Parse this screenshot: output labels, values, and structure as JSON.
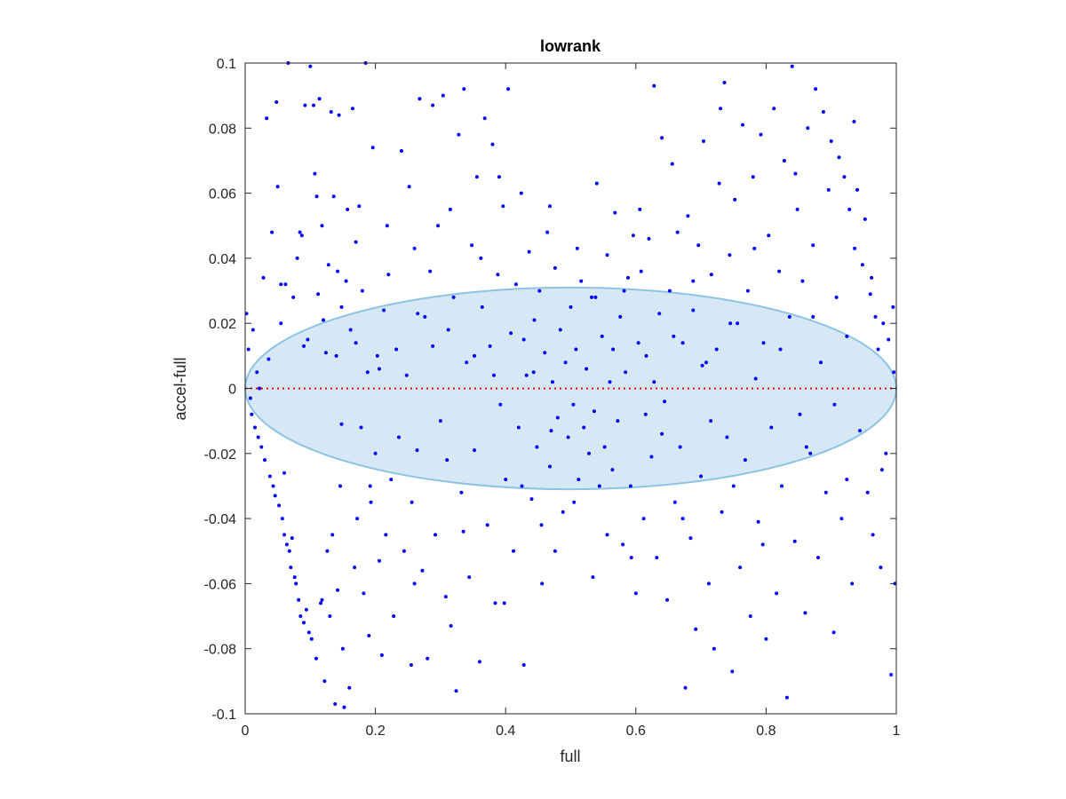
{
  "chart_data": {
    "type": "scatter",
    "title": "lowrank",
    "xlabel": "full",
    "ylabel": "accel-full",
    "xlim": [
      0,
      1
    ],
    "ylim": [
      -0.1,
      0.1
    ],
    "x_ticks": [
      "0",
      "0.2",
      "0.4",
      "0.6",
      "0.8",
      "1"
    ],
    "y_ticks": [
      "0.1",
      "0.08",
      "0.06",
      "0.04",
      "0.02",
      "0",
      "-0.02",
      "-0.04",
      "-0.06",
      "-0.08",
      "-0.1"
    ],
    "grid": false,
    "legend": "none",
    "reference_line": {
      "y": 0,
      "style": "dotted",
      "color": "#ff0000"
    },
    "ellipse": {
      "center": [
        0.5,
        0
      ],
      "x_radius": 0.5,
      "y_radius": 0.031,
      "fill": "#d6e8f5",
      "stroke": "#8ec3e3"
    },
    "marker_color": "#0000ff",
    "points": [
      [
        0.002,
        0.023
      ],
      [
        0.005,
        0.012
      ],
      [
        0.008,
        -0.003
      ],
      [
        0.01,
        -0.008
      ],
      [
        0.012,
        0.018
      ],
      [
        0.015,
        -0.012
      ],
      [
        0.018,
        0.005
      ],
      [
        0.02,
        -0.015
      ],
      [
        0.022,
        0.0
      ],
      [
        0.025,
        -0.018
      ],
      [
        0.028,
        0.034
      ],
      [
        0.03,
        -0.022
      ],
      [
        0.033,
        0.083
      ],
      [
        0.036,
        0.009
      ],
      [
        0.038,
        -0.027
      ],
      [
        0.041,
        0.048
      ],
      [
        0.043,
        -0.03
      ],
      [
        0.046,
        -0.033
      ],
      [
        0.048,
        0.088
      ],
      [
        0.05,
        0.062
      ],
      [
        0.052,
        -0.036
      ],
      [
        0.055,
        0.02
      ],
      [
        0.057,
        -0.04
      ],
      [
        0.06,
        -0.045
      ],
      [
        0.062,
        0.032
      ],
      [
        0.064,
        -0.048
      ],
      [
        0.066,
        0.1
      ],
      [
        0.068,
        -0.05
      ],
      [
        0.07,
        -0.055
      ],
      [
        0.072,
        -0.046
      ],
      [
        0.074,
        0.028
      ],
      [
        0.076,
        -0.058
      ],
      [
        0.078,
        -0.06
      ],
      [
        0.08,
        0.04
      ],
      [
        0.082,
        -0.065
      ],
      [
        0.085,
        -0.07
      ],
      [
        0.087,
        0.047
      ],
      [
        0.09,
        -0.072
      ],
      [
        0.092,
        0.087
      ],
      [
        0.094,
        -0.068
      ],
      [
        0.096,
        0.015
      ],
      [
        0.098,
        -0.075
      ],
      [
        0.1,
        0.099
      ],
      [
        0.102,
        -0.077
      ],
      [
        0.105,
        0.087
      ],
      [
        0.107,
        0.066
      ],
      [
        0.109,
        -0.083
      ],
      [
        0.11,
        0.059
      ],
      [
        0.112,
        0.029
      ],
      [
        0.114,
        0.089
      ],
      [
        0.116,
        -0.066
      ],
      [
        0.118,
        0.05
      ],
      [
        0.12,
        0.021
      ],
      [
        0.122,
        -0.09
      ],
      [
        0.124,
        0.011
      ],
      [
        0.126,
        -0.05
      ],
      [
        0.128,
        0.038
      ],
      [
        0.13,
        -0.07
      ],
      [
        0.132,
        0.085
      ],
      [
        0.134,
        -0.045
      ],
      [
        0.136,
        0.059
      ],
      [
        0.138,
        -0.097
      ],
      [
        0.14,
        0.01
      ],
      [
        0.142,
        -0.062
      ],
      [
        0.144,
        0.084
      ],
      [
        0.146,
        -0.03
      ],
      [
        0.148,
        0.025
      ],
      [
        0.15,
        -0.08
      ],
      [
        0.152,
        -0.098
      ],
      [
        0.155,
        0.033
      ],
      [
        0.157,
        0.055
      ],
      [
        0.16,
        -0.092
      ],
      [
        0.162,
        0.018
      ],
      [
        0.165,
        0.086
      ],
      [
        0.168,
        -0.055
      ],
      [
        0.17,
        0.045
      ],
      [
        0.172,
        -0.04
      ],
      [
        0.175,
        0.056
      ],
      [
        0.178,
        -0.012
      ],
      [
        0.18,
        0.03
      ],
      [
        0.182,
        -0.063
      ],
      [
        0.185,
        0.1
      ],
      [
        0.188,
        0.005
      ],
      [
        0.19,
        -0.076
      ],
      [
        0.193,
        -0.035
      ],
      [
        0.196,
        0.074
      ],
      [
        0.2,
        -0.02
      ],
      [
        0.203,
        0.01
      ],
      [
        0.206,
        -0.053
      ],
      [
        0.21,
        -0.082
      ],
      [
        0.213,
        0.024
      ],
      [
        0.216,
        -0.045
      ],
      [
        0.22,
        0.035
      ],
      [
        0.224,
        -0.028
      ],
      [
        0.228,
        -0.07
      ],
      [
        0.232,
        0.012
      ],
      [
        0.236,
        -0.015
      ],
      [
        0.24,
        0.073
      ],
      [
        0.244,
        -0.05
      ],
      [
        0.248,
        0.004
      ],
      [
        0.252,
        0.062
      ],
      [
        0.256,
        -0.035
      ],
      [
        0.26,
        0.043
      ],
      [
        0.264,
        -0.019
      ],
      [
        0.268,
        0.089
      ],
      [
        0.272,
        -0.056
      ],
      [
        0.276,
        0.022
      ],
      [
        0.28,
        -0.083
      ],
      [
        0.284,
        0.036
      ],
      [
        0.288,
        0.087
      ],
      [
        0.292,
        -0.045
      ],
      [
        0.296,
        0.05
      ],
      [
        0.3,
        -0.01
      ],
      [
        0.304,
        0.09
      ],
      [
        0.308,
        -0.064
      ],
      [
        0.312,
        0.018
      ],
      [
        0.316,
        -0.073
      ],
      [
        0.32,
        0.028
      ],
      [
        0.324,
        -0.093
      ],
      [
        0.328,
        0.078
      ],
      [
        0.332,
        -0.032
      ],
      [
        0.336,
        0.092
      ],
      [
        0.34,
        0.008
      ],
      [
        0.344,
        -0.058
      ],
      [
        0.348,
        0.044
      ],
      [
        0.352,
        -0.019
      ],
      [
        0.356,
        0.065
      ],
      [
        0.36,
        -0.084
      ],
      [
        0.364,
        0.025
      ],
      [
        0.368,
        0.083
      ],
      [
        0.372,
        -0.042
      ],
      [
        0.376,
        0.013
      ],
      [
        0.38,
        0.075
      ],
      [
        0.384,
        -0.066
      ],
      [
        0.388,
        0.035
      ],
      [
        0.392,
        -0.005
      ],
      [
        0.396,
        0.056
      ],
      [
        0.4,
        -0.028
      ],
      [
        0.404,
        0.092
      ],
      [
        0.408,
        0.017
      ],
      [
        0.412,
        -0.05
      ],
      [
        0.416,
        0.032
      ],
      [
        0.42,
        -0.012
      ],
      [
        0.424,
        0.06
      ],
      [
        0.428,
        -0.085
      ],
      [
        0.432,
        0.004
      ],
      [
        0.436,
        0.042
      ],
      [
        0.44,
        -0.034
      ],
      [
        0.444,
        0.021
      ],
      [
        0.448,
        -0.018
      ],
      [
        0.452,
        0.03
      ],
      [
        0.456,
        -0.06
      ],
      [
        0.46,
        0.011
      ],
      [
        0.464,
        0.048
      ],
      [
        0.468,
        -0.024
      ],
      [
        0.472,
        0.002
      ],
      [
        0.476,
        0.037
      ],
      [
        0.48,
        -0.009
      ],
      [
        0.484,
        0.018
      ],
      [
        0.488,
        -0.038
      ],
      [
        0.492,
        0.008
      ],
      [
        0.496,
        -0.015
      ],
      [
        0.5,
        0.025
      ],
      [
        0.504,
        -0.005
      ],
      [
        0.508,
        0.012
      ],
      [
        0.512,
        -0.028
      ],
      [
        0.516,
        0.033
      ],
      [
        0.52,
        -0.012
      ],
      [
        0.524,
        0.006
      ],
      [
        0.528,
        -0.02
      ],
      [
        0.532,
        0.028
      ],
      [
        0.536,
        -0.007
      ],
      [
        0.54,
        0.063
      ],
      [
        0.544,
        -0.03
      ],
      [
        0.548,
        0.016
      ],
      [
        0.552,
        -0.018
      ],
      [
        0.556,
        0.041
      ],
      [
        0.56,
        0.002
      ],
      [
        0.564,
        -0.025
      ],
      [
        0.568,
        0.054
      ],
      [
        0.572,
        -0.01
      ],
      [
        0.576,
        0.022
      ],
      [
        0.58,
        -0.048
      ],
      [
        0.584,
        0.005
      ],
      [
        0.588,
        0.034
      ],
      [
        0.592,
        -0.03
      ],
      [
        0.596,
        0.047
      ],
      [
        0.6,
        -0.063
      ],
      [
        0.604,
        0.014
      ],
      [
        0.608,
        0.036
      ],
      [
        0.612,
        -0.04
      ],
      [
        0.616,
        0.01
      ],
      [
        0.62,
        0.046
      ],
      [
        0.624,
        -0.021
      ],
      [
        0.628,
        0.093
      ],
      [
        0.632,
        -0.052
      ],
      [
        0.636,
        0.023
      ],
      [
        0.64,
        0.077
      ],
      [
        0.644,
        -0.004
      ],
      [
        0.648,
        -0.065
      ],
      [
        0.652,
        0.03
      ],
      [
        0.656,
        0.069
      ],
      [
        0.66,
        -0.035
      ],
      [
        0.664,
        0.048
      ],
      [
        0.668,
        -0.018
      ],
      [
        0.672,
        0.014
      ],
      [
        0.676,
        -0.092
      ],
      [
        0.68,
        0.053
      ],
      [
        0.684,
        -0.046
      ],
      [
        0.688,
        0.024
      ],
      [
        0.692,
        -0.074
      ],
      [
        0.696,
        0.044
      ],
      [
        0.7,
        -0.027
      ],
      [
        0.704,
        0.076
      ],
      [
        0.708,
        0.008
      ],
      [
        0.712,
        -0.06
      ],
      [
        0.716,
        0.035
      ],
      [
        0.72,
        -0.08
      ],
      [
        0.724,
        0.012
      ],
      [
        0.728,
        0.063
      ],
      [
        0.732,
        -0.038
      ],
      [
        0.736,
        0.094
      ],
      [
        0.74,
        -0.015
      ],
      [
        0.744,
        0.041
      ],
      [
        0.748,
        -0.087
      ],
      [
        0.752,
        0.058
      ],
      [
        0.756,
        0.02
      ],
      [
        0.76,
        -0.055
      ],
      [
        0.764,
        0.081
      ],
      [
        0.768,
        -0.022
      ],
      [
        0.772,
        0.03
      ],
      [
        0.776,
        -0.07
      ],
      [
        0.78,
        0.065
      ],
      [
        0.784,
        0.003
      ],
      [
        0.788,
        -0.041
      ],
      [
        0.792,
        0.078
      ],
      [
        0.796,
        0.014
      ],
      [
        0.8,
        -0.077
      ],
      [
        0.804,
        0.047
      ],
      [
        0.808,
        -0.012
      ],
      [
        0.812,
        0.086
      ],
      [
        0.816,
        -0.063
      ],
      [
        0.82,
        0.036
      ],
      [
        0.824,
        -0.03
      ],
      [
        0.828,
        0.07
      ],
      [
        0.832,
        -0.095
      ],
      [
        0.836,
        0.022
      ],
      [
        0.84,
        0.099
      ],
      [
        0.844,
        -0.047
      ],
      [
        0.848,
        0.055
      ],
      [
        0.852,
        -0.008
      ],
      [
        0.856,
        0.033
      ],
      [
        0.86,
        -0.069
      ],
      [
        0.864,
        0.08
      ],
      [
        0.868,
        -0.02
      ],
      [
        0.872,
        0.044
      ],
      [
        0.876,
        0.092
      ],
      [
        0.88,
        -0.052
      ],
      [
        0.884,
        0.008
      ],
      [
        0.888,
        0.085
      ],
      [
        0.892,
        -0.032
      ],
      [
        0.896,
        0.061
      ],
      [
        0.9,
        0.076
      ],
      [
        0.904,
        -0.075
      ],
      [
        0.908,
        0.028
      ],
      [
        0.912,
        0.071
      ],
      [
        0.916,
        -0.04
      ],
      [
        0.92,
        0.065
      ],
      [
        0.924,
        0.016
      ],
      [
        0.928,
        0.055
      ],
      [
        0.932,
        -0.06
      ],
      [
        0.936,
        0.043
      ],
      [
        0.94,
        0.061
      ],
      [
        0.944,
        -0.013
      ],
      [
        0.948,
        0.038
      ],
      [
        0.952,
        0.052
      ],
      [
        0.956,
        -0.032
      ],
      [
        0.96,
        0.029
      ],
      [
        0.964,
        -0.045
      ],
      [
        0.968,
        0.022
      ],
      [
        0.972,
        0.012
      ],
      [
        0.976,
        -0.055
      ],
      [
        0.98,
        0.02
      ],
      [
        0.984,
        -0.02
      ],
      [
        0.988,
        0.015
      ],
      [
        0.992,
        -0.088
      ],
      [
        0.996,
        0.005
      ],
      [
        0.998,
        -0.06
      ],
      [
        0.255,
        -0.085
      ],
      [
        0.615,
        -0.008
      ],
      [
        0.142,
        0.036
      ],
      [
        0.335,
        -0.044
      ],
      [
        0.428,
        0.015
      ],
      [
        0.582,
        0.03
      ],
      [
        0.745,
        0.02
      ],
      [
        0.862,
        -0.018
      ],
      [
        0.505,
        -0.035
      ],
      [
        0.398,
        -0.066
      ],
      [
        0.468,
        0.056
      ],
      [
        0.672,
        -0.04
      ],
      [
        0.206,
        0.006
      ],
      [
        0.315,
        0.055
      ],
      [
        0.055,
        0.032
      ],
      [
        0.905,
        -0.005
      ],
      [
        0.538,
        0.028
      ],
      [
        0.795,
        -0.048
      ],
      [
        0.382,
        0.004
      ],
      [
        0.218,
        0.05
      ],
      [
        0.702,
        0.007
      ],
      [
        0.455,
        -0.042
      ],
      [
        0.265,
        0.023
      ],
      [
        0.64,
        -0.014
      ],
      [
        0.118,
        -0.065
      ],
      [
        0.978,
        -0.025
      ],
      [
        0.556,
        -0.045
      ],
      [
        0.73,
        0.086
      ],
      [
        0.845,
        0.066
      ],
      [
        0.192,
        -0.03
      ],
      [
        0.362,
        0.04
      ],
      [
        0.476,
        -0.05
      ],
      [
        0.606,
        0.055
      ],
      [
        0.75,
        -0.03
      ],
      [
        0.084,
        0.048
      ],
      [
        0.962,
        0.034
      ],
      [
        0.51,
        0.043
      ],
      [
        0.425,
        -0.03
      ],
      [
        0.288,
        0.013
      ],
      [
        0.688,
        0.033
      ],
      [
        0.822,
        0.012
      ],
      [
        0.148,
        -0.011
      ],
      [
        0.593,
        -0.052
      ],
      [
        0.39,
        0.065
      ],
      [
        0.534,
        -0.058
      ],
      [
        0.715,
        -0.01
      ],
      [
        0.26,
        -0.06
      ],
      [
        0.872,
        0.022
      ],
      [
        0.935,
        0.082
      ],
      [
        0.17,
        0.014
      ],
      [
        0.443,
        0.005
      ],
      [
        0.658,
        0.016
      ],
      [
        0.31,
        -0.022
      ],
      [
        0.565,
        0.012
      ],
      [
        0.06,
        -0.026
      ],
      [
        0.995,
        0.025
      ],
      [
        0.782,
        0.043
      ],
      [
        0.47,
        -0.013
      ],
      [
        0.352,
        0.01
      ],
      [
        0.628,
        0.002
      ],
      [
        0.09,
        0.013
      ],
      [
        0.924,
        -0.028
      ]
    ]
  }
}
